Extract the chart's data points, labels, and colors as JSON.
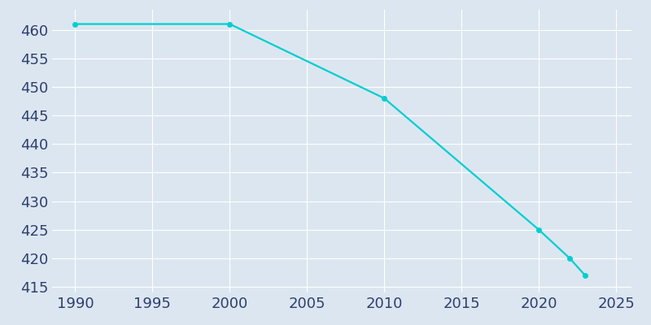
{
  "years": [
    1990,
    2000,
    2010,
    2020,
    2022,
    2023
  ],
  "population": [
    461,
    461,
    448,
    425,
    420,
    417
  ],
  "line_color": "#00CED1",
  "marker_color": "#00CED1",
  "background_color": "#dce6f0",
  "plot_background_color": "#dce6f0",
  "grid_color": "#ffffff",
  "tick_color": "#2e3f6e",
  "xlim": [
    1988.5,
    2026
  ],
  "ylim": [
    414,
    463.5
  ],
  "xticks": [
    1990,
    1995,
    2000,
    2005,
    2010,
    2015,
    2020,
    2025
  ],
  "yticks": [
    415,
    420,
    425,
    430,
    435,
    440,
    445,
    450,
    455,
    460
  ],
  "line_width": 1.6,
  "marker_size": 4,
  "figsize": [
    8.0,
    4.0
  ],
  "dpi": 100,
  "tick_fontsize": 13
}
